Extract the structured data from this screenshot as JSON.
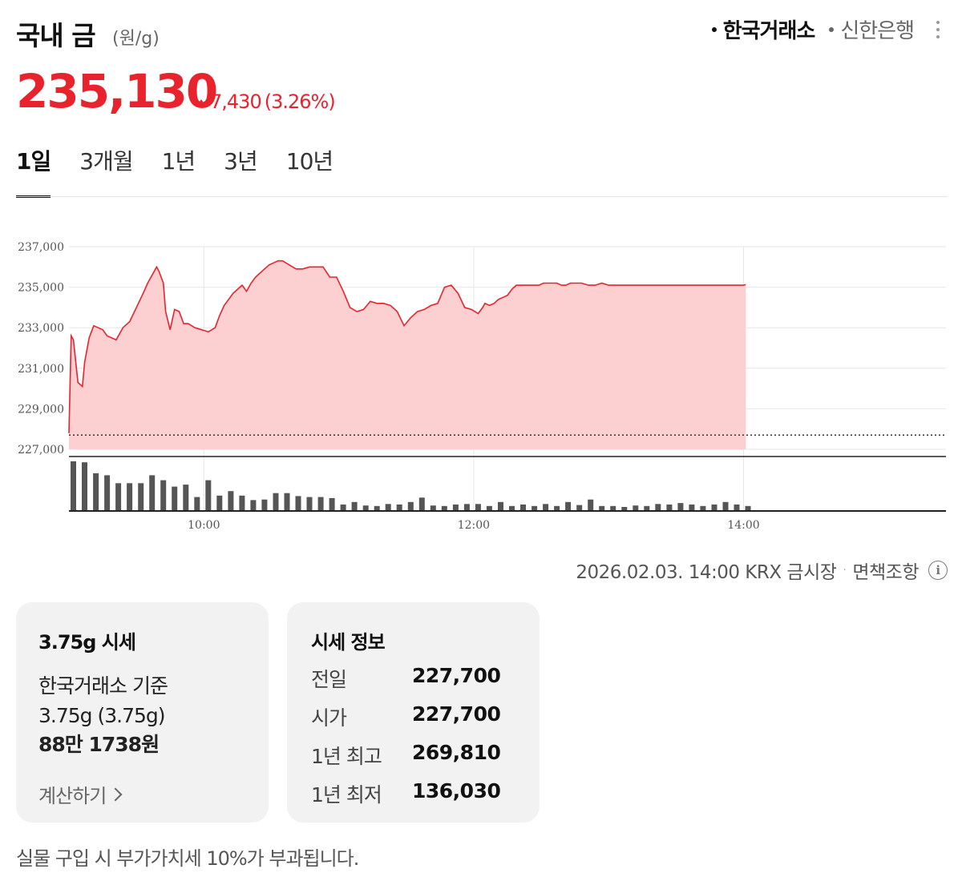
{
  "header": {
    "title": "국내 금",
    "unit": "(원/g)",
    "sources": [
      {
        "label": "한국거래소",
        "active": true
      },
      {
        "label": "신한은행",
        "active": false
      }
    ]
  },
  "price": {
    "value": "235,130",
    "change": "7,430",
    "change_pct": "(3.26%)",
    "color": "#e8232d"
  },
  "tabs": [
    "1일",
    "3개월",
    "1년",
    "3년",
    "10년"
  ],
  "chart_data": {
    "type": "area",
    "title": "",
    "xlabel": "",
    "ylabel": "",
    "ylim": [
      227000,
      237000
    ],
    "yticks": [
      "237,000",
      "235,000",
      "233,000",
      "231,000",
      "229,000",
      "227,000"
    ],
    "xticks": [
      "10:00",
      "12:00",
      "14:00"
    ],
    "xrange": [
      "09:00",
      "15:30"
    ],
    "grid": true,
    "baseline": 227700,
    "line_color": "#e8232d",
    "fill_color": "#fccfd1",
    "series": [
      {
        "x": [
          "09:00",
          "09:01",
          "09:02",
          "09:04",
          "09:06",
          "09:07",
          "09:09",
          "09:11",
          "09:13",
          "09:15",
          "09:17",
          "09:19",
          "09:21",
          "09:24",
          "09:27",
          "09:30",
          "09:33",
          "09:35",
          "09:37",
          "09:39",
          "09:40",
          "09:42",
          "09:43",
          "09:45",
          "09:47",
          "09:49",
          "09:51",
          "09:53",
          "09:56",
          "09:59",
          "10:02",
          "10:05",
          "10:07",
          "10:09",
          "10:11",
          "10:13",
          "10:15",
          "10:17",
          "10:19",
          "10:21",
          "10:23",
          "10:25",
          "10:27",
          "10:29",
          "10:31",
          "10:33",
          "10:35",
          "10:38",
          "10:41",
          "10:44",
          "10:47",
          "10:50",
          "10:53",
          "10:56",
          "10:59",
          "11:02",
          "11:05",
          "11:08",
          "11:11",
          "11:14",
          "11:17",
          "11:20",
          "11:23",
          "11:26",
          "11:29",
          "11:32",
          "11:35",
          "11:38",
          "11:41",
          "11:44",
          "11:47",
          "11:50",
          "11:53",
          "11:56",
          "11:59",
          "12:02",
          "12:04",
          "12:05",
          "12:07",
          "12:09",
          "12:11",
          "12:13",
          "12:15",
          "12:17",
          "12:19",
          "12:21",
          "12:23",
          "12:25",
          "12:27",
          "12:29",
          "12:31",
          "12:33",
          "12:35",
          "12:37",
          "12:39",
          "12:41",
          "12:43",
          "12:45",
          "12:48",
          "12:51",
          "12:54",
          "12:57",
          "13:00",
          "13:05",
          "13:10",
          "13:15",
          "13:20",
          "13:25",
          "13:30",
          "13:35",
          "13:40",
          "13:45",
          "13:50",
          "13:55",
          "14:00",
          "14:01"
        ],
        "values": [
          227800,
          232600,
          232400,
          230300,
          230100,
          231300,
          232500,
          233100,
          233000,
          232900,
          232600,
          232500,
          232400,
          233000,
          233300,
          234000,
          234700,
          235200,
          235600,
          236000,
          235800,
          235200,
          233800,
          232900,
          233900,
          233800,
          233200,
          233200,
          233000,
          232900,
          232800,
          233000,
          233600,
          234100,
          234400,
          234700,
          234900,
          235100,
          234800,
          235200,
          235500,
          235700,
          235900,
          236100,
          236200,
          236300,
          236300,
          236100,
          235900,
          235900,
          236000,
          236000,
          236000,
          235500,
          235500,
          234800,
          234000,
          233800,
          233900,
          234300,
          234200,
          234200,
          234100,
          233800,
          233100,
          233500,
          233800,
          233900,
          234100,
          234200,
          235000,
          235100,
          234700,
          234000,
          233900,
          233700,
          234000,
          234200,
          234100,
          234200,
          234400,
          234500,
          234600,
          234900,
          235100,
          235100,
          235100,
          235100,
          235100,
          235100,
          235200,
          235200,
          235200,
          235200,
          235100,
          235100,
          235200,
          235200,
          235200,
          235100,
          235100,
          235200,
          235100,
          235100,
          235100,
          235100,
          235100,
          235100,
          235100,
          235100,
          235100,
          235100,
          235100,
          235100,
          235100,
          235130
        ]
      }
    ],
    "volume": {
      "color": "#555555",
      "x": [
        "09:00",
        "09:05",
        "09:10",
        "09:15",
        "09:20",
        "09:25",
        "09:30",
        "09:35",
        "09:40",
        "09:45",
        "09:50",
        "09:55",
        "10:00",
        "10:05",
        "10:10",
        "10:15",
        "10:20",
        "10:25",
        "10:30",
        "10:35",
        "10:40",
        "10:45",
        "10:50",
        "10:55",
        "11:00",
        "11:05",
        "11:10",
        "11:15",
        "11:20",
        "11:25",
        "11:30",
        "11:35",
        "11:40",
        "11:45",
        "11:50",
        "11:55",
        "12:00",
        "12:05",
        "12:10",
        "12:15",
        "12:20",
        "12:25",
        "12:30",
        "12:35",
        "12:40",
        "12:45",
        "12:50",
        "12:55",
        "13:00",
        "13:05",
        "13:10",
        "13:15",
        "13:20",
        "13:25",
        "13:30",
        "13:35",
        "13:40",
        "13:45",
        "13:50",
        "13:55",
        "14:00"
      ],
      "values": [
        100,
        98,
        76,
        72,
        56,
        56,
        56,
        72,
        62,
        49,
        53,
        28,
        62,
        31,
        40,
        31,
        22,
        23,
        36,
        36,
        30,
        28,
        28,
        26,
        13,
        18,
        11,
        10,
        14,
        13,
        18,
        27,
        11,
        10,
        13,
        14,
        14,
        10,
        18,
        10,
        13,
        10,
        14,
        10,
        18,
        12,
        23,
        10,
        10,
        8,
        11,
        10,
        14,
        13,
        16,
        13,
        10,
        13,
        18,
        13,
        10
      ]
    }
  },
  "footnote": {
    "source": "2026.02.03. 14:00 KRX 금시장",
    "separator": "·",
    "disclaimer": "면책조항"
  },
  "card_375": {
    "title": "3.75g 시세",
    "basis": "한국거래소 기준",
    "weight": "3.75g (3.75g)",
    "price": "88만 1738원",
    "calc_link": "계산하기"
  },
  "card_info": {
    "title": "시세 정보",
    "rows": [
      {
        "label": "전일",
        "value": "227,700"
      },
      {
        "label": "시가",
        "value": "227,700"
      },
      {
        "label": "1년 최고",
        "value": "269,810"
      },
      {
        "label": "1년 최저",
        "value": "136,030"
      }
    ]
  },
  "vat_note": "실물 구입 시 부가가치세 10%가 부과됩니다."
}
